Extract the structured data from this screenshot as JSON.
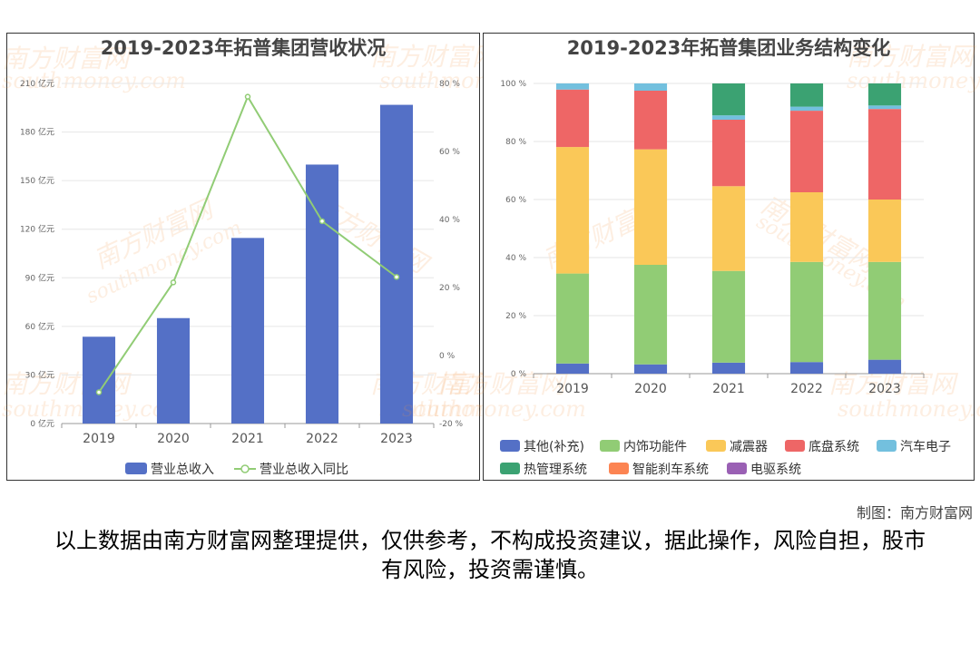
{
  "watermark": {
    "cn": "南方财富网",
    "en": "southmoney.com"
  },
  "credit": "制图：南方财富网",
  "disclaimer": "以上数据由南方财富网整理提供，仅供参考，不构成投资建议，据此操作，风险自担，股市有风险，投资需谨慎。",
  "chart_data": [
    {
      "type": "bar",
      "title": "2019-2023年拓普集团营收状况",
      "categories": [
        "2019",
        "2020",
        "2021",
        "2022",
        "2023"
      ],
      "series": [
        {
          "name": "营业总收入",
          "type": "bar",
          "axis": "left",
          "values": [
            53.6,
            65.1,
            114.6,
            159.9,
            196.8
          ],
          "color": "#5470c6"
        },
        {
          "name": "营业总收入同比",
          "type": "line",
          "axis": "right",
          "values": [
            -10.8,
            21.5,
            76.1,
            39.5,
            23.1
          ],
          "color": "#91cc75"
        }
      ],
      "left_axis": {
        "min": 0,
        "max": 210,
        "step": 30,
        "unit": "亿元"
      },
      "right_axis": {
        "min": -20,
        "max": 80,
        "step": 20,
        "unit": "%"
      },
      "legend": "bottom"
    },
    {
      "type": "bar",
      "stacked": true,
      "title": "2019-2023年拓普集团业务结构变化",
      "categories": [
        "2019",
        "2020",
        "2021",
        "2022",
        "2023"
      ],
      "series": [
        {
          "name": "其他(补充)",
          "values": [
            3.5,
            3.2,
            3.8,
            4.0,
            4.8
          ],
          "color": "#5470c6"
        },
        {
          "name": "内饰功能件",
          "values": [
            31.0,
            34.3,
            31.6,
            34.5,
            33.7
          ],
          "color": "#91cc75"
        },
        {
          "name": "减震器",
          "values": [
            43.6,
            39.8,
            29.2,
            24.0,
            21.5
          ],
          "color": "#fac858"
        },
        {
          "name": "底盘系统",
          "values": [
            19.8,
            20.2,
            22.9,
            28.1,
            31.2
          ],
          "color": "#ee6666"
        },
        {
          "name": "汽车电子",
          "values": [
            2.1,
            2.5,
            1.5,
            1.4,
            1.2
          ],
          "color": "#73c0de"
        },
        {
          "name": "热管理系统",
          "values": [
            0,
            0,
            11.0,
            8.0,
            7.6
          ],
          "color": "#3ba272"
        },
        {
          "name": "智能刹车系统",
          "values": [
            0,
            0,
            0,
            0,
            0
          ],
          "color": "#fc8452"
        },
        {
          "name": "电驱系统",
          "values": [
            0,
            0,
            0,
            0,
            0
          ],
          "color": "#9a60b4"
        }
      ],
      "y_axis": {
        "min": 0,
        "max": 100,
        "step": 20,
        "unit": "%"
      },
      "legend": "bottom"
    }
  ]
}
